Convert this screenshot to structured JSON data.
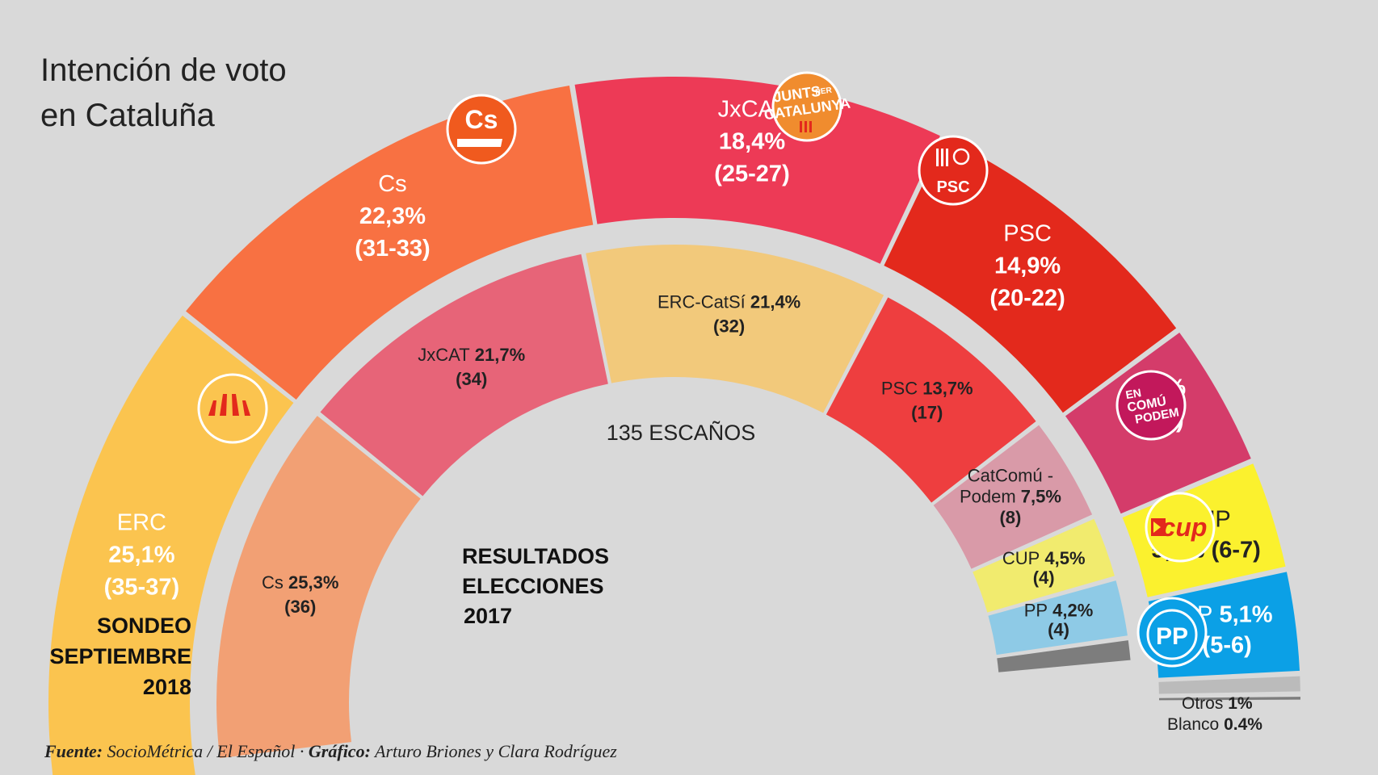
{
  "title_line1": "Intención de voto",
  "title_line2": "en Cataluña",
  "center_label": "135 ESCAÑOS",
  "outer_label": [
    "SONDEO",
    "SEPTIEMBRE",
    "2018"
  ],
  "inner_label": [
    "RESULTADOS",
    "ELECCIONES",
    "2017"
  ],
  "otros": {
    "label": "Otros",
    "value": "1%"
  },
  "blanco": {
    "label": "Blanco",
    "value": "0.4%"
  },
  "footer": {
    "fuente_label": "Fuente:",
    "fuente_text": "SocioMétrica / El Español ·",
    "grafico_label": "Gráfico:",
    "grafico_text": "Arturo Briones y Clara Rodríguez"
  },
  "logos": {
    "cs": "Cs",
    "junts": [
      "JUNTS",
      "PER",
      "CATALUNYA"
    ],
    "psc": "PSC",
    "encomu": [
      "EN",
      "COMÚ",
      "PODEM"
    ],
    "cup": "cup",
    "pp": "PP"
  },
  "chart_data": [
    {
      "type": "pie",
      "title": "SONDEO SEPTIEMBRE 2018",
      "total_seats": 135,
      "series": [
        {
          "name": "ERC",
          "pct": 25.1,
          "pct_label": "25,1%",
          "seats": "(35-37)",
          "color": "#fbc44f"
        },
        {
          "name": "Cs",
          "pct": 22.3,
          "pct_label": "22,3%",
          "seats": "(31-33)",
          "color": "#f87142"
        },
        {
          "name": "JxCAT",
          "pct": 18.4,
          "pct_label": "18,4%",
          "seats": "(25-27)",
          "color": "#ed3a56"
        },
        {
          "name": "PSC",
          "pct": 14.9,
          "pct_label": "14,9%",
          "seats": "(20-22)",
          "color": "#e3291c"
        },
        {
          "name": "",
          "pct": 7.3,
          "pct_label": "7,3%",
          "seats": "(8-9)",
          "color": "#d43c6a"
        },
        {
          "name": "CUP",
          "pct": 5.5,
          "pct_label": "5,5%",
          "seats": "(6-7)",
          "color": "#fbf12e"
        },
        {
          "name": "PP",
          "pct": 5.1,
          "pct_label": "5,1%",
          "seats": "(5-6)",
          "color": "#0ba0e6"
        },
        {
          "name": "Otros",
          "pct": 1.0,
          "color": "#bbbbbb"
        },
        {
          "name": "Blanco",
          "pct": 0.4,
          "color": "#7d7d7d"
        }
      ]
    },
    {
      "type": "pie",
      "title": "RESULTADOS ELECCIONES 2017",
      "series": [
        {
          "name": "Cs",
          "pct": 25.3,
          "pct_label": "25,3%",
          "seats": "(36)",
          "color": "#f2a074"
        },
        {
          "name": "JxCAT",
          "pct": 21.7,
          "pct_label": "21,7%",
          "seats": "(34)",
          "color": "#e76478"
        },
        {
          "name": "ERC-CatSí",
          "pct": 21.4,
          "pct_label": "21,4%",
          "seats": "(32)",
          "color": "#f2c97b"
        },
        {
          "name": "PSC",
          "pct": 13.7,
          "pct_label": "13,7%",
          "seats": "(17)",
          "color": "#ee3e3f"
        },
        {
          "name": "CatComú - Podem",
          "name_lines": [
            "CatComú -",
            "Podem"
          ],
          "pct": 7.5,
          "pct_label": "7,5%",
          "seats": "(8)",
          "color": "#d99aa8"
        },
        {
          "name": "CUP",
          "pct": 4.5,
          "pct_label": "4,5%",
          "seats": "(4)",
          "color": "#f1eb6e"
        },
        {
          "name": "PP",
          "pct": 4.2,
          "pct_label": "4,2%",
          "seats": "(4)",
          "color": "#8ecae6"
        },
        {
          "name": "Otros",
          "pct": 1.7,
          "color": "#7d7d7d"
        }
      ]
    }
  ]
}
